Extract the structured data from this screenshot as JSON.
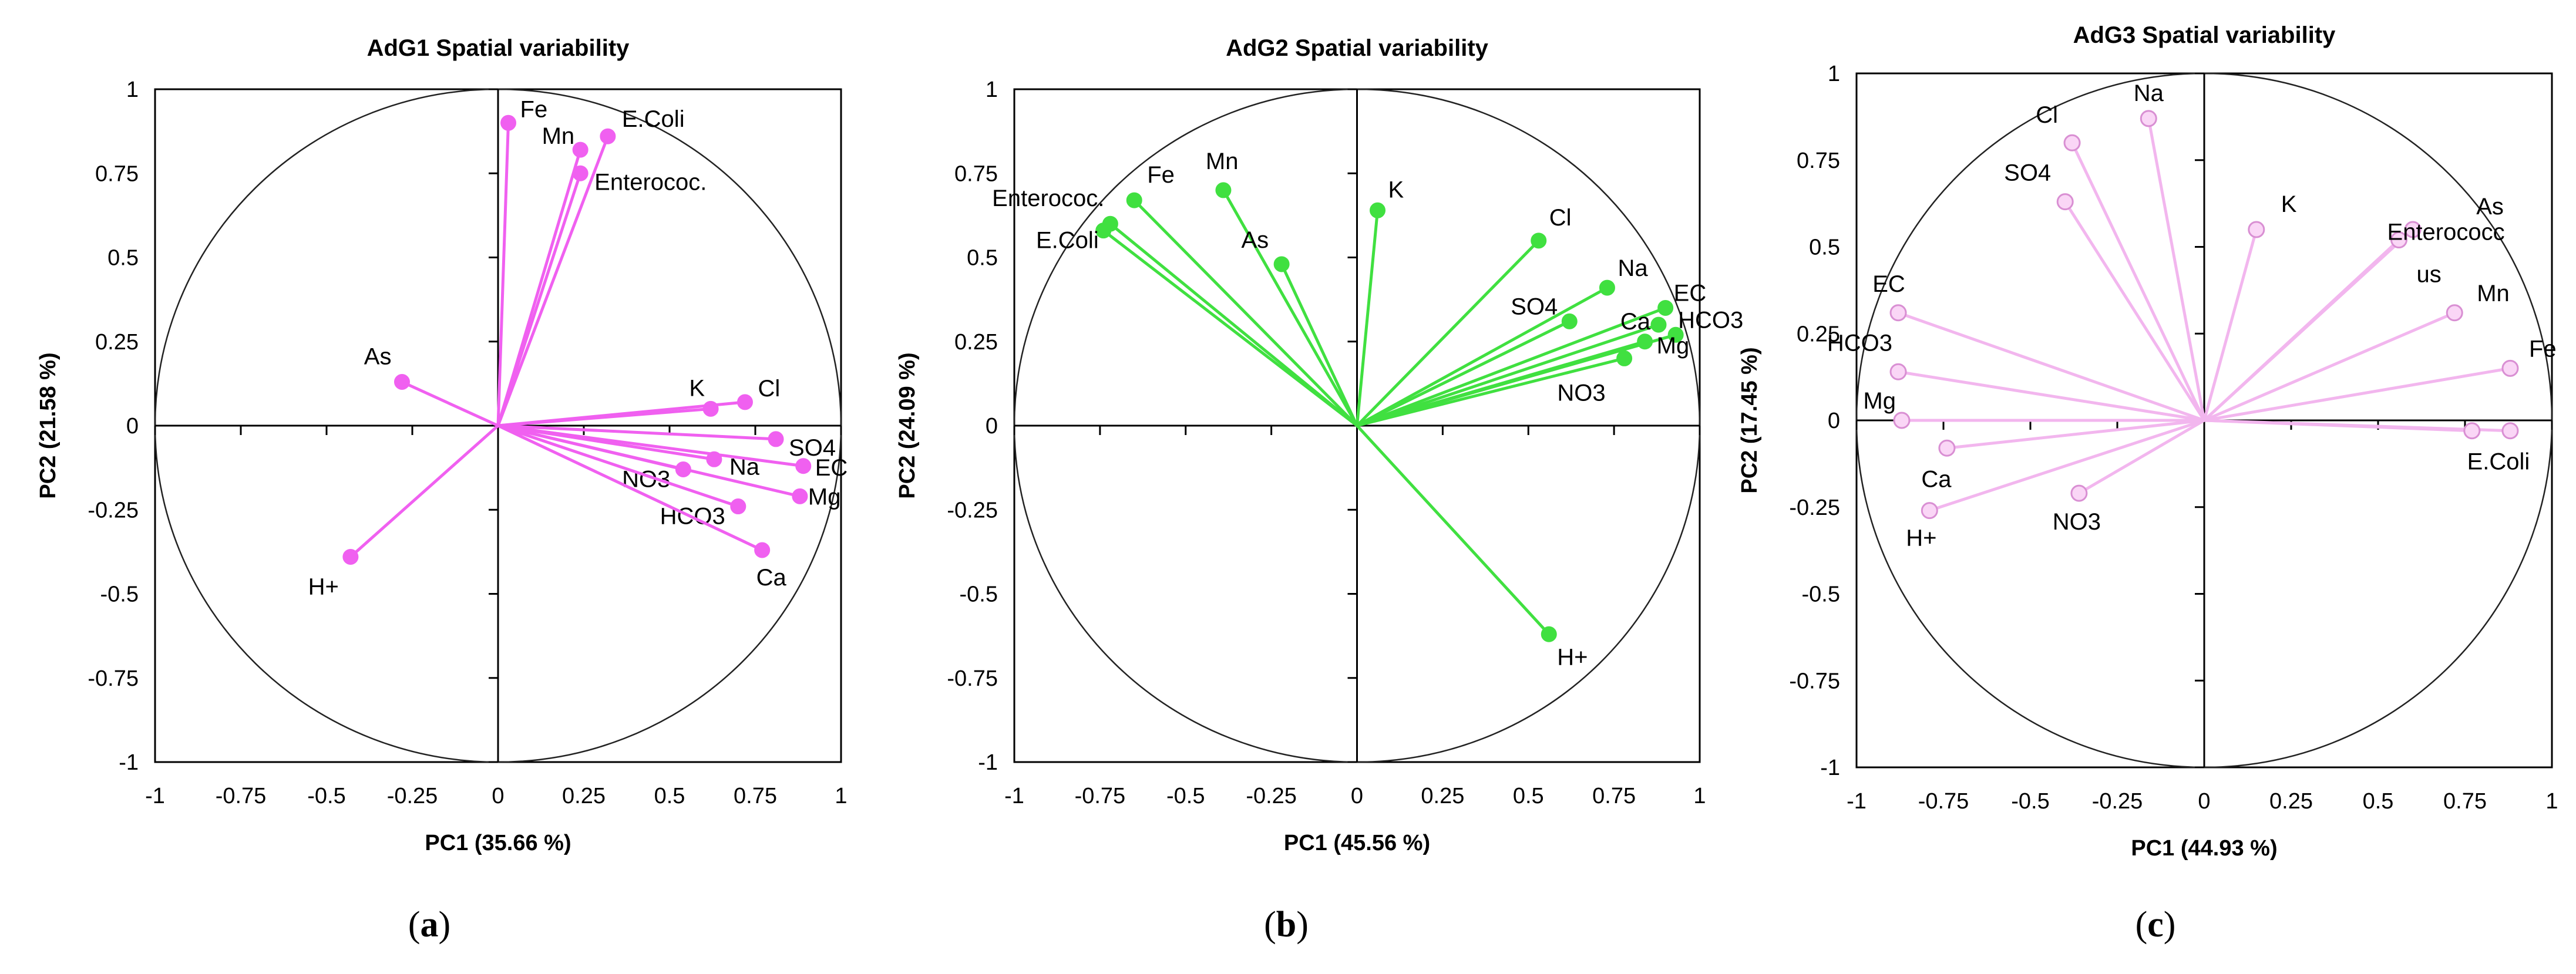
{
  "chart_data": [
    {
      "type": "scatter",
      "subtype": "pca-loading-plot",
      "title": "AdG1 Spatial variability",
      "xlabel": "PC1 (35.66 %)",
      "ylabel": "PC2 (21.58 %)",
      "xlim": [
        -1,
        1
      ],
      "ylim": [
        -1,
        1
      ],
      "xticks": [
        "-1",
        "-0.75",
        "-0.5",
        "-0.25",
        "0",
        "0.25",
        "0.5",
        "0.75",
        "1"
      ],
      "yticks": [
        "1",
        "0.75",
        "0.5",
        "0.25",
        "0",
        "-0.25",
        "-0.5",
        "-0.75",
        "-1"
      ],
      "color": "#f060f0",
      "marker_fill": "#f060f0",
      "caption_letter": "a",
      "points": [
        {
          "label": "Fe",
          "x": 0.03,
          "y": 0.9
        },
        {
          "label": "Mn",
          "x": 0.24,
          "y": 0.82
        },
        {
          "label": "E.Coli",
          "x": 0.32,
          "y": 0.86
        },
        {
          "label": "Enterococ.",
          "x": 0.24,
          "y": 0.75
        },
        {
          "label": "As",
          "x": -0.28,
          "y": 0.13
        },
        {
          "label": "K",
          "x": 0.62,
          "y": 0.05
        },
        {
          "label": "Cl",
          "x": 0.72,
          "y": 0.07
        },
        {
          "label": "SO4",
          "x": 0.81,
          "y": -0.04
        },
        {
          "label": "Na",
          "x": 0.63,
          "y": -0.1
        },
        {
          "label": "NO3",
          "x": 0.54,
          "y": -0.13
        },
        {
          "label": "EC",
          "x": 0.89,
          "y": -0.12
        },
        {
          "label": "Mg",
          "x": 0.88,
          "y": -0.21
        },
        {
          "label": "HCO3",
          "x": 0.7,
          "y": -0.24
        },
        {
          "label": "Ca",
          "x": 0.77,
          "y": -0.37
        },
        {
          "label": "H+",
          "x": -0.43,
          "y": -0.39
        }
      ]
    },
    {
      "type": "scatter",
      "subtype": "pca-loading-plot",
      "title": "AdG2  Spatial variability",
      "xlabel": "PC1 (45.56 %)",
      "ylabel": "PC2 (24.09 %)",
      "xlim": [
        -1,
        1
      ],
      "ylim": [
        -1,
        1
      ],
      "xticks": [
        "-1",
        "-0.75",
        "-0.5",
        "-0.25",
        "0",
        "0.25",
        "0.5",
        "0.75",
        "1"
      ],
      "yticks": [
        "1",
        "0.75",
        "0.5",
        "0.25",
        "0",
        "-0.25",
        "-0.5",
        "-0.75",
        "-1"
      ],
      "color": "#40e040",
      "marker_fill": "#40e040",
      "caption_letter": "b",
      "points": [
        {
          "label": "Fe",
          "x": -0.65,
          "y": 0.67
        },
        {
          "label": "Mn",
          "x": -0.39,
          "y": 0.7
        },
        {
          "label": "Enterococ.",
          "x": -0.72,
          "y": 0.6
        },
        {
          "label": "E.Coli",
          "x": -0.74,
          "y": 0.58
        },
        {
          "label": "As",
          "x": -0.22,
          "y": 0.48
        },
        {
          "label": "K",
          "x": 0.06,
          "y": 0.64
        },
        {
          "label": "Cl",
          "x": 0.53,
          "y": 0.55
        },
        {
          "label": "Na",
          "x": 0.73,
          "y": 0.41
        },
        {
          "label": "EC",
          "x": 0.9,
          "y": 0.35
        },
        {
          "label": "SO4",
          "x": 0.62,
          "y": 0.31
        },
        {
          "label": "Ca",
          "x": 0.88,
          "y": 0.3
        },
        {
          "label": "HCO3",
          "x": 0.93,
          "y": 0.27
        },
        {
          "label": "Mg",
          "x": 0.84,
          "y": 0.25
        },
        {
          "label": "NO3",
          "x": 0.78,
          "y": 0.2
        },
        {
          "label": "H+",
          "x": 0.56,
          "y": -0.62
        }
      ]
    },
    {
      "type": "scatter",
      "subtype": "pca-loading-plot",
      "title": "AdG3 Spatial variability",
      "xlabel": "PC1 (44.93 %)",
      "ylabel": "PC2 (17.45 %)",
      "xlim": [
        -1,
        1
      ],
      "ylim": [
        -1,
        1
      ],
      "xticks": [
        "-1",
        "-0.75",
        "-0.5",
        "-0.25",
        "0",
        "0.25",
        "0.5",
        "0.75",
        "1"
      ],
      "yticks": [
        "1",
        "0.75",
        "0.5",
        "0.25",
        "0",
        "-0.25",
        "-0.5",
        "-0.75",
        "-1"
      ],
      "color": "#f2b6ee",
      "marker_fill": "#fad6f6",
      "caption_letter": "c",
      "points": [
        {
          "label": "Na",
          "x": -0.16,
          "y": 0.87
        },
        {
          "label": "Cl",
          "x": -0.38,
          "y": 0.8
        },
        {
          "label": "SO4",
          "x": -0.4,
          "y": 0.63
        },
        {
          "label": "K",
          "x": 0.15,
          "y": 0.55
        },
        {
          "label": "As",
          "x": 0.6,
          "y": 0.55
        },
        {
          "label": "Enterococc us",
          "x": 0.56,
          "y": 0.52
        },
        {
          "label": "Mn",
          "x": 0.72,
          "y": 0.31
        },
        {
          "label": "Fe",
          "x": 0.88,
          "y": 0.15
        },
        {
          "label": "EC",
          "x": -0.88,
          "y": 0.31
        },
        {
          "label": "HCO3",
          "x": -0.88,
          "y": 0.14
        },
        {
          "label": "Mg",
          "x": -0.87,
          "y": 0.0
        },
        {
          "label": "Ca",
          "x": -0.74,
          "y": -0.08
        },
        {
          "label": "H+",
          "x": -0.79,
          "y": -0.26
        },
        {
          "label": "NO3",
          "x": -0.36,
          "y": -0.21
        },
        {
          "label": "E.Coli",
          "x": 0.88,
          "y": -0.03
        },
        {
          "label": "",
          "x": 0.77,
          "y": -0.03
        }
      ]
    }
  ]
}
